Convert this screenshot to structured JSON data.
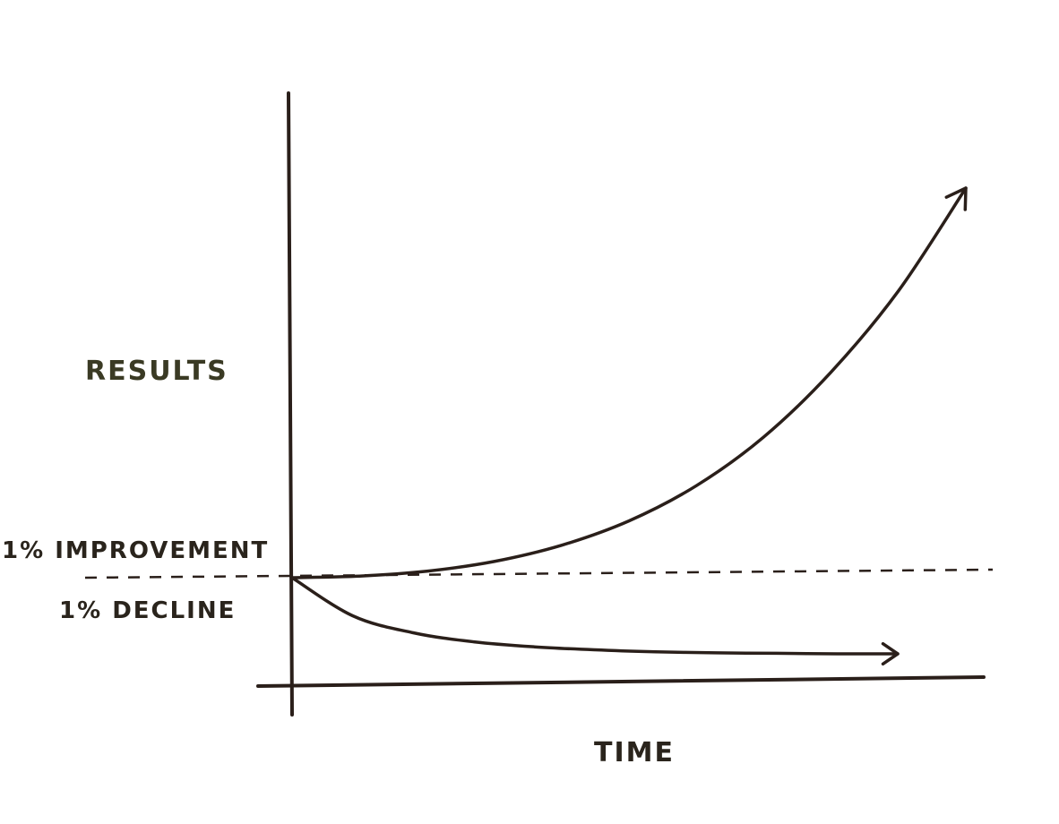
{
  "chart_data": {
    "type": "line",
    "title": "",
    "xlabel": "TIME",
    "ylabel": "RESULTS",
    "baseline_value": 1,
    "baseline_style": "dashed",
    "grid": false,
    "legend": "none",
    "x": [
      0,
      1,
      2,
      3,
      4,
      5,
      6,
      7,
      8,
      9,
      10
    ],
    "series": [
      {
        "name": "1% IMPROVEMENT",
        "values": [
          1.0,
          1.03,
          1.12,
          1.3,
          1.6,
          2.05,
          2.7,
          3.6,
          4.8,
          6.3,
          8.2
        ],
        "arrow": true
      },
      {
        "name": "1% DECLINE",
        "values": [
          1.0,
          0.62,
          0.45,
          0.36,
          0.31,
          0.28,
          0.26,
          0.25,
          0.245,
          0.24,
          0.24
        ],
        "arrow": true
      }
    ],
    "colors": {
      "ink": "#2a1f1a",
      "label_ink": "#3a3a24"
    }
  }
}
